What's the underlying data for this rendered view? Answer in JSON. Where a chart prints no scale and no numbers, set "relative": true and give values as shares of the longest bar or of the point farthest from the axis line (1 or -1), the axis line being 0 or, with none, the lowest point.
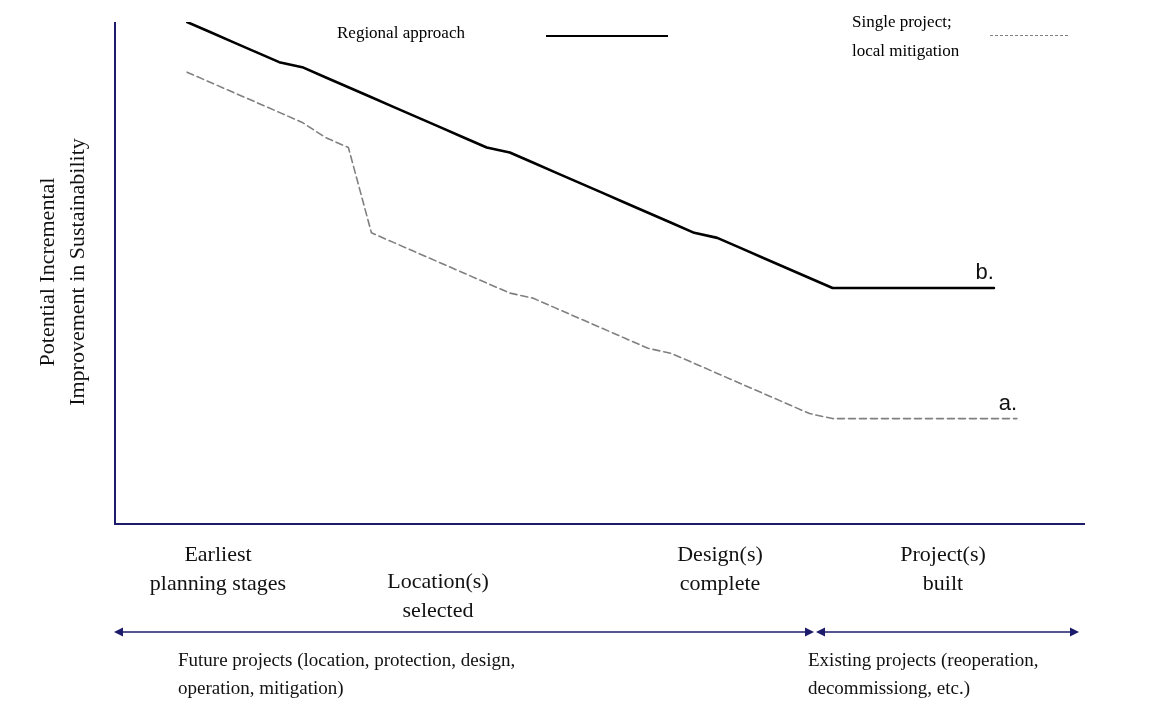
{
  "chart_data": {
    "type": "line",
    "relative": true,
    "ylabel": "Potential Incremental Improvement in Sustainability",
    "legend": "top",
    "categories": [
      null,
      null,
      null,
      null,
      null,
      null,
      null,
      null,
      null,
      null,
      null,
      null,
      null,
      null,
      null,
      null,
      null,
      null,
      null,
      null,
      null,
      null,
      null,
      null,
      null,
      null,
      null,
      null,
      null,
      null,
      null,
      null,
      null,
      null,
      null,
      null,
      null
    ],
    "series": [
      {
        "name": "Regional approach",
        "color": "#000000",
        "line_style": "solid",
        "values": [
          1.0,
          0.98,
          0.96,
          0.94,
          0.92,
          0.91,
          0.89,
          0.87,
          0.85,
          0.83,
          0.81,
          0.79,
          0.77,
          0.75,
          0.74,
          0.72,
          0.7,
          0.68,
          0.66,
          0.64,
          0.62,
          0.6,
          0.58,
          0.57,
          0.55,
          0.53,
          0.51,
          0.49,
          0.47,
          0.47,
          0.47,
          0.47,
          0.47,
          0.47,
          0.47,
          0.47,
          null
        ]
      },
      {
        "name": "Single project; local mitigation",
        "color": "#808080",
        "line_style": "dashed",
        "values": [
          0.9,
          0.88,
          0.86,
          0.84,
          0.82,
          0.8,
          0.77,
          0.75,
          0.58,
          0.56,
          0.54,
          0.52,
          0.5,
          0.48,
          0.46,
          0.45,
          0.43,
          0.41,
          0.39,
          0.37,
          0.35,
          0.34,
          0.32,
          0.3,
          0.28,
          0.26,
          0.24,
          0.22,
          0.21,
          0.21,
          0.21,
          0.21,
          0.21,
          0.21,
          0.21,
          0.21,
          0.21
        ]
      }
    ],
    "annotations": [
      {
        "text": "b.",
        "y": 0.47
      },
      {
        "text": "a.",
        "y": 0.21
      },
      "Earliest planning stages",
      "Location(s) selected",
      "Design(s) complete",
      "Project(s) built",
      "Future projects (location, protection, design, operation, mitigation)",
      "Existing projects (reoperation, decommissiong, etc.)"
    ]
  }
}
